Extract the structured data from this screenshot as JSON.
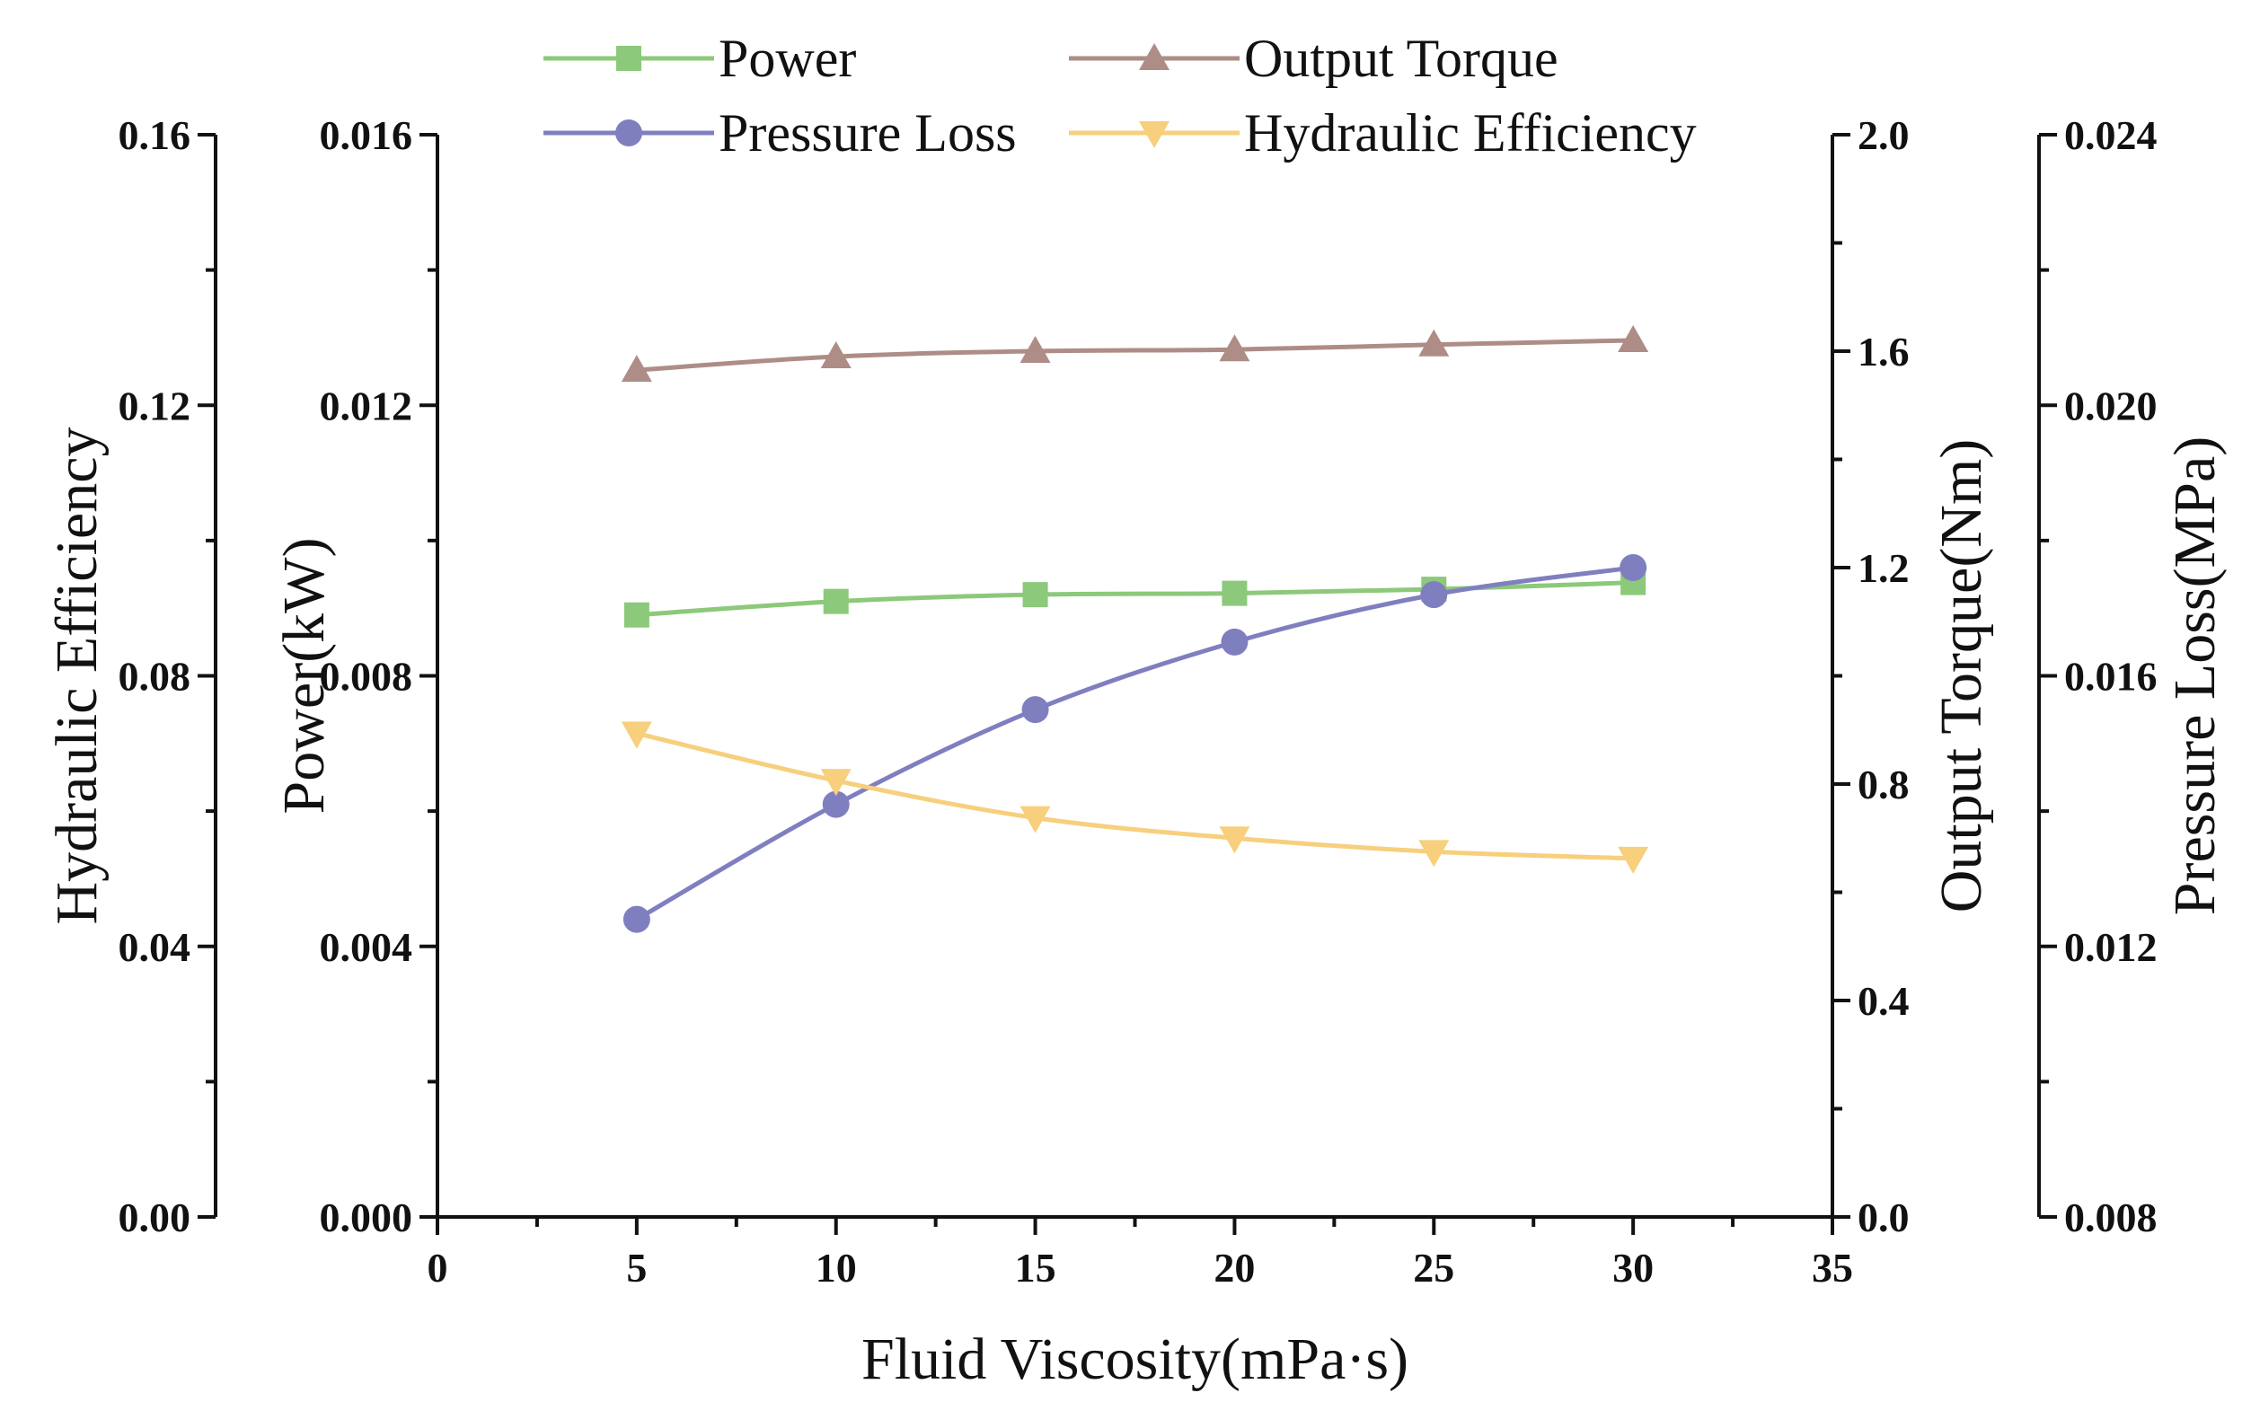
{
  "chart_data": {
    "type": "line",
    "title": "",
    "xlabel": "Fluid Viscosity(mPa·s)",
    "xlim": [
      0,
      35
    ],
    "x_ticks": [
      "0",
      "5",
      "10",
      "15",
      "20",
      "25",
      "30",
      "35"
    ],
    "x": [
      5,
      10,
      15,
      20,
      25,
      30
    ],
    "axes": {
      "hyd": {
        "label": "Hydraulic Efficiency",
        "range": [
          0.0,
          0.16
        ],
        "ticks": [
          "0.00",
          "0.04",
          "0.08",
          "0.12",
          "0.16"
        ],
        "side": "left-outer"
      },
      "pow": {
        "label": "Power(kW)",
        "range": [
          0.0,
          0.016
        ],
        "ticks": [
          "0.000",
          "0.004",
          "0.008",
          "0.012",
          "0.016"
        ],
        "side": "left"
      },
      "tor": {
        "label": "Output Torque(Nm)",
        "range": [
          0.0,
          2.0
        ],
        "ticks": [
          "0.0",
          "0.4",
          "0.8",
          "1.2",
          "1.6",
          "2.0"
        ],
        "side": "right"
      },
      "pre": {
        "label": "Pressure Loss(MPa)",
        "range": [
          0.008,
          0.024
        ],
        "ticks": [
          "0.008",
          "0.012",
          "0.016",
          "0.020",
          "0.024"
        ],
        "side": "right-outer"
      }
    },
    "series": [
      {
        "name": "Power",
        "axis": "pow",
        "marker": "square",
        "color": "#8cc97a",
        "values": [
          0.0089,
          0.0091,
          0.0092,
          0.00922,
          0.00928,
          0.00938
        ]
      },
      {
        "name": "Output Torque",
        "axis": "tor",
        "marker": "triangle-up",
        "color": "#ad8d86",
        "values": [
          1.565,
          1.59,
          1.6,
          1.603,
          1.612,
          1.62
        ]
      },
      {
        "name": "Pressure Loss",
        "axis": "pre",
        "marker": "circle",
        "color": "#7f7fc0",
        "values": [
          0.0124,
          0.0141,
          0.0155,
          0.0165,
          0.0172,
          0.0176
        ]
      },
      {
        "name": "Hydraulic Efficiency",
        "axis": "hyd",
        "marker": "triangle-down",
        "color": "#f7cf7d",
        "values": [
          0.0715,
          0.0645,
          0.059,
          0.056,
          0.054,
          0.053
        ]
      }
    ],
    "legend": {
      "placement": "top",
      "items": [
        "Power",
        "Output Torque",
        "Pressure Loss",
        "Hydraulic Efficiency"
      ]
    }
  }
}
